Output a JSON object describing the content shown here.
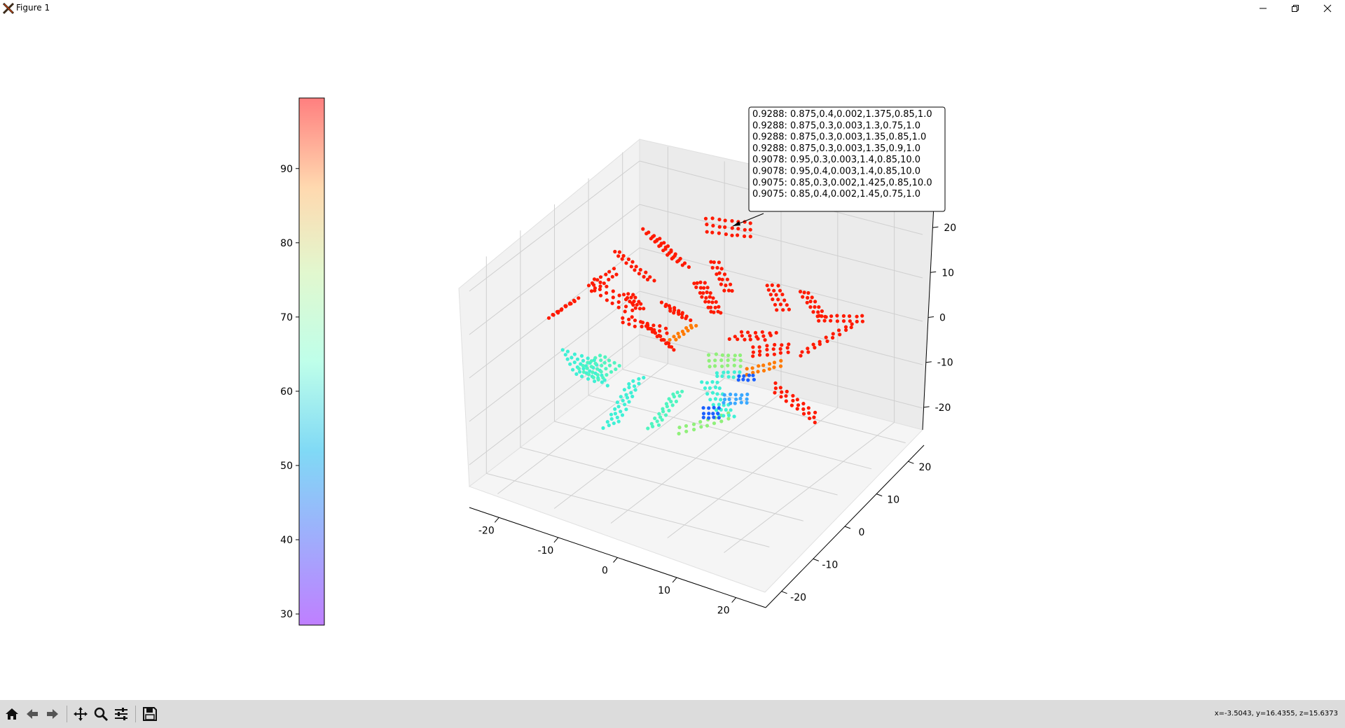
{
  "window": {
    "title": "Figure 1",
    "icons": [
      "app-x-icon",
      "minimize-icon",
      "restore-icon",
      "close-icon"
    ]
  },
  "toolbar": {
    "buttons": [
      "home-icon",
      "back-icon",
      "forward-icon",
      "pan-icon",
      "zoom-icon",
      "configure-subplots-icon",
      "save-icon"
    ],
    "coords": "x=-3.5043, y=16.4355, z=15.6373"
  },
  "colorbar": {
    "ticks": [
      30,
      40,
      50,
      60,
      70,
      80,
      90
    ],
    "range": [
      28.5,
      99.5
    ],
    "colormap": "rainbow",
    "alpha": 0.5
  },
  "chart_data": {
    "type": "scatter",
    "projection": "3d",
    "title": "",
    "xlabel": "",
    "ylabel": "",
    "zlabel": "",
    "x_ticks": [
      -20,
      -10,
      0,
      10,
      20
    ],
    "y_ticks": [
      -20,
      -10,
      0,
      10,
      20
    ],
    "z_ticks": [
      -20,
      -10,
      0,
      10,
      20
    ],
    "colormap": "rainbow",
    "grid": true,
    "annotation": {
      "lines": [
        "0.9288: 0.875,0.4,0.002,1.375,0.85,1.0",
        "0.9288: 0.875,0.3,0.003,1.3,0.75,1.0",
        "0.9288: 0.875,0.3,0.003,1.35,0.85,1.0",
        "0.9288: 0.875,0.3,0.003,1.35,0.9,1.0",
        "0.9078: 0.95,0.3,0.003,1.4,0.85,10.0",
        "0.9078: 0.95,0.4,0.003,1.4,0.85,10.0",
        "0.9075: 0.85,0.3,0.002,1.425,0.85,10.0",
        "0.9075: 0.85,0.4,0.002,1.45,0.75,1.0"
      ]
    }
  }
}
